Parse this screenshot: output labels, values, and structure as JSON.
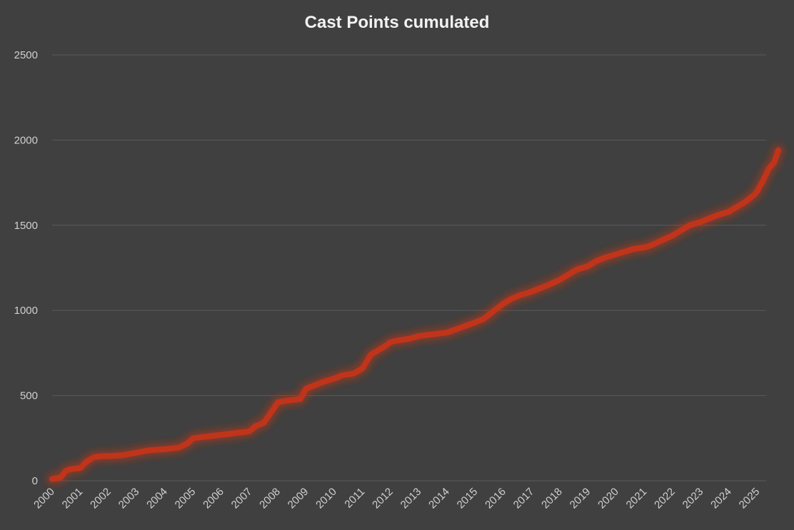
{
  "chart_data": {
    "type": "line",
    "title": "Cast Points cumulated",
    "xlabel": "",
    "ylabel": "",
    "ylim": [
      0,
      2500
    ],
    "yticks": [
      "0",
      "500",
      "1000",
      "1500",
      "2000",
      "2500"
    ],
    "xticks": [
      "2000",
      "2001",
      "2002",
      "2003",
      "2004",
      "2005",
      "2006",
      "2007",
      "2008",
      "2009",
      "2010",
      "2011",
      "2012",
      "2013",
      "2014",
      "2015",
      "2016",
      "2017",
      "2018",
      "2019",
      "2020",
      "2021",
      "2022",
      "2023",
      "2024",
      "2025"
    ],
    "grid": true,
    "legend": "none",
    "series": [
      {
        "color": "#c0341a",
        "x": [
          2000.0,
          2000.3,
          2000.5,
          2000.7,
          2001.0,
          2001.2,
          2001.5,
          2001.8,
          2002.0,
          2002.5,
          2003.0,
          2003.3,
          2003.5,
          2004.0,
          2004.5,
          2004.8,
          2005.0,
          2005.5,
          2006.0,
          2006.5,
          2007.0,
          2007.2,
          2007.5,
          2007.8,
          2008.0,
          2008.3,
          2008.8,
          2009.0,
          2009.3,
          2009.6,
          2010.0,
          2010.3,
          2010.7,
          2011.0,
          2011.3,
          2011.5,
          2011.8,
          2012.0,
          2012.3,
          2012.7,
          2013.0,
          2013.5,
          2014.0,
          2014.5,
          2015.0,
          2015.3,
          2015.6,
          2016.0,
          2016.3,
          2016.6,
          2017.0,
          2017.3,
          2017.6,
          2018.0,
          2018.3,
          2018.6,
          2019.0,
          2019.3,
          2019.6,
          2020.0,
          2020.3,
          2020.6,
          2021.0,
          2021.2,
          2021.6,
          2022.0,
          2022.3,
          2022.6,
          2023.0,
          2023.3,
          2023.6,
          2024.0,
          2024.3,
          2024.6,
          2024.9,
          2025.0,
          2025.2,
          2025.4,
          2025.6,
          2025.75
        ],
        "y": [
          10,
          20,
          60,
          70,
          75,
          110,
          140,
          145,
          145,
          150,
          165,
          175,
          180,
          185,
          195,
          220,
          250,
          260,
          270,
          280,
          290,
          320,
          340,
          410,
          460,
          470,
          480,
          540,
          560,
          580,
          600,
          620,
          630,
          660,
          740,
          760,
          790,
          815,
          825,
          835,
          850,
          860,
          870,
          900,
          930,
          950,
          990,
          1040,
          1070,
          1090,
          1110,
          1130,
          1150,
          1180,
          1210,
          1240,
          1260,
          1290,
          1310,
          1330,
          1345,
          1360,
          1370,
          1380,
          1410,
          1440,
          1470,
          1500,
          1520,
          1540,
          1560,
          1580,
          1610,
          1640,
          1680,
          1700,
          1760,
          1830,
          1870,
          1940
        ]
      }
    ]
  }
}
